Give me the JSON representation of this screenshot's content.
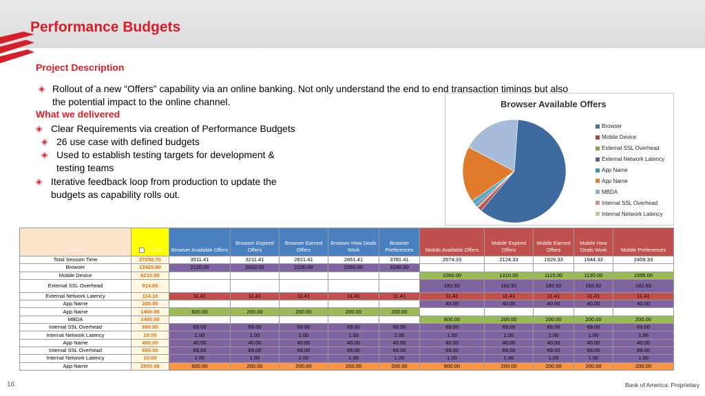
{
  "slide": {
    "title": "Performance Budgets",
    "page_number": "16",
    "footer": "Bank of America: Proprietary"
  },
  "project_description": {
    "heading": "Project Description",
    "bullet": "Rollout of a new “Offers” capability via an online banking. Not only understand the end to end transaction timings but also",
    "bullet_cont": "the potential impact to the online channel."
  },
  "delivered": {
    "heading": "What we delivered",
    "items": [
      "Clear Requirements via creation of Performance Budgets",
      "26 use case with defined budgets",
      "Used to establish testing targets for development &",
      "testing teams",
      "Iterative feedback loop from production to update the",
      "budgets as capability rolls out."
    ]
  },
  "pie_chart": {
    "title": "Browser Available Offers",
    "legend": [
      {
        "name": "Browser",
        "color": "#4573a7"
      },
      {
        "name": "Mobile Device",
        "color": "#aa4643"
      },
      {
        "name": "External SSL Overhead",
        "color": "#89a54e"
      },
      {
        "name": "External Network Latency",
        "color": "#71588f"
      },
      {
        "name": "App Name",
        "color": "#4198af"
      },
      {
        "name": "App Name",
        "color": "#db843d"
      },
      {
        "name": "MBDA",
        "color": "#93a9cf"
      },
      {
        "name": "Internal SSL Overhead",
        "color": "#d19392"
      },
      {
        "name": "Internal Network Latency",
        "color": "#b9cd96"
      }
    ],
    "slices": [
      {
        "value": 60,
        "color": "#3d6a9f"
      },
      {
        "value": 1.3,
        "color": "#c0504d"
      },
      {
        "value": 0.5,
        "color": "#9bbb59"
      },
      {
        "value": 0.7,
        "color": "#8064a2"
      },
      {
        "value": 1.6,
        "color": "#4bacc6"
      },
      {
        "value": 17.5,
        "color": "#e07b2e"
      },
      {
        "value": 18.4,
        "color": "#a7bcda"
      }
    ]
  },
  "sheet": {
    "header": {
      "local": "Local",
      "value": "1.00",
      "columns": [
        "Browser Available Offers",
        "Browser Expired Offers",
        "Browser Earned Offers",
        "Browser How Deals Work",
        "Browser Preferences",
        "Mobile Available Offers",
        "Mobile Expired Offers",
        "Mobile Earned Offers",
        "Mobile How Deals Work",
        "Mobile Preferences"
      ]
    },
    "rows": [
      {
        "label": "Total Session Time",
        "budget": "27258.70",
        "cells": [
          "3511.41",
          "3211.41",
          "2821.41",
          "2851.41",
          "3781.41",
          "2674.33",
          "2124.33",
          "1929.33",
          "1944.33",
          "2409.33"
        ],
        "colors": [
          "w",
          "w",
          "w",
          "w",
          "w",
          "w",
          "w",
          "w",
          "w",
          "w"
        ],
        "blue": true
      },
      {
        "label": "Browser",
        "budget": "12420.00",
        "cells": [
          "2120.00",
          "2620.00",
          "2230.00",
          "2260.00",
          "3190.00",
          "",
          "",
          "",
          "",
          ""
        ],
        "colors": [
          "p",
          "p",
          "p",
          "p",
          "p",
          "w",
          "w",
          "w",
          "w",
          "w"
        ]
      },
      {
        "label": "Mobile Device",
        "budget": "6210.00",
        "cells": [
          "",
          "",
          "",
          "",
          "",
          "1060.00",
          "1310.00",
          "1115.00",
          "1130.00",
          "1595.00"
        ],
        "colors": [
          "w",
          "w",
          "w",
          "w",
          "w",
          "g",
          "g",
          "g",
          "g",
          "g"
        ]
      },
      {
        "label": "External SSL Overhead",
        "budget": "914.60",
        "cells": [
          "",
          "",
          "",
          "",
          "",
          "182.92",
          "182.92",
          "182.92",
          "182.92",
          "182.92"
        ],
        "colors": [
          "w",
          "w",
          "w",
          "w",
          "w",
          "p",
          "p",
          "p",
          "p",
          "p"
        ],
        "tall": true
      },
      {
        "label": "External Network Latency",
        "budget": "114.10",
        "cells": [
          "11.41",
          "11.41",
          "11.41",
          "11.41",
          "11.41",
          "11.41",
          "11.41",
          "11.41",
          "11.41",
          "11.41"
        ],
        "colors": [
          "r",
          "r",
          "r",
          "r",
          "r",
          "r",
          "r",
          "r",
          "r",
          "r"
        ]
      },
      {
        "label": "App Name",
        "budget": "200.00",
        "cells": [
          "",
          "",
          "",
          "",
          "",
          "40.00",
          "40.00",
          "40.00",
          "40.00",
          "40.00"
        ],
        "colors": [
          "w",
          "w",
          "w",
          "w",
          "w",
          "p",
          "p",
          "p",
          "p",
          "p"
        ]
      },
      {
        "label": "App Name",
        "budget": "1400.00",
        "cells": [
          "600.00",
          "200.00",
          "200.00",
          "200.00",
          "200.00",
          "",
          "",
          "",
          "",
          ""
        ],
        "colors": [
          "g",
          "g",
          "g",
          "g",
          "g",
          "w",
          "w",
          "w",
          "w",
          "w"
        ]
      },
      {
        "label": "MBDA",
        "budget": "1400.00",
        "cells": [
          "",
          "",
          "",
          "",
          "",
          "600.00",
          "200.00",
          "200.00",
          "200.00",
          "200.00"
        ],
        "colors": [
          "w",
          "w",
          "w",
          "w",
          "w",
          "g",
          "g",
          "g",
          "g",
          "g"
        ]
      },
      {
        "label": "Internal SSL Overhead",
        "budget": "690.00",
        "cells": [
          "69.00",
          "69.00",
          "69.00",
          "69.00",
          "69.00",
          "69.00",
          "69.00",
          "69.00",
          "69.00",
          "69.00"
        ],
        "colors": [
          "p",
          "p",
          "p",
          "p",
          "p",
          "p",
          "p",
          "p",
          "p",
          "p"
        ]
      },
      {
        "label": "Internal Network Latency",
        "budget": "10.00",
        "cells": [
          "1.00",
          "1.00",
          "1.00",
          "1.00",
          "1.00",
          "1.00",
          "1.00",
          "1.00",
          "1.00",
          "1.00"
        ],
        "colors": [
          "p",
          "p",
          "p",
          "p",
          "p",
          "p",
          "p",
          "p",
          "p",
          "p"
        ]
      },
      {
        "label": "App Name",
        "budget": "400.00",
        "cells": [
          "40.00",
          "40.00",
          "40.00",
          "40.00",
          "40.00",
          "40.00",
          "40.00",
          "40.00",
          "40.00",
          "40.00"
        ],
        "colors": [
          "p",
          "p",
          "p",
          "p",
          "p",
          "p",
          "p",
          "p",
          "p",
          "p"
        ]
      },
      {
        "label": "Internal SSL Overhead",
        "budget": "690.00",
        "cells": [
          "69.00",
          "69.00",
          "69.00",
          "69.00",
          "69.00",
          "69.00",
          "69.00",
          "69.00",
          "69.00",
          "69.00"
        ],
        "colors": [
          "p",
          "p",
          "p",
          "p",
          "p",
          "p",
          "p",
          "p",
          "p",
          "p"
        ]
      },
      {
        "label": "Internal Network Latency",
        "budget": "10.00",
        "cells": [
          "1.00",
          "1.00",
          "1.00",
          "1.00",
          "1.00",
          "1.00",
          "1.00",
          "1.00",
          "1.00",
          "1.00"
        ],
        "colors": [
          "p",
          "p",
          "p",
          "p",
          "p",
          "p",
          "p",
          "p",
          "p",
          "p"
        ]
      },
      {
        "label": "App Name",
        "budget": "2800.00",
        "cells": [
          "600.00",
          "200.00",
          "200.00",
          "200.00",
          "200.00",
          "600.00",
          "200.00",
          "200.00",
          "200.00",
          "200.00"
        ],
        "colors": [
          "o",
          "o",
          "o",
          "o",
          "o",
          "o",
          "o",
          "o",
          "o",
          "o"
        ]
      }
    ]
  }
}
